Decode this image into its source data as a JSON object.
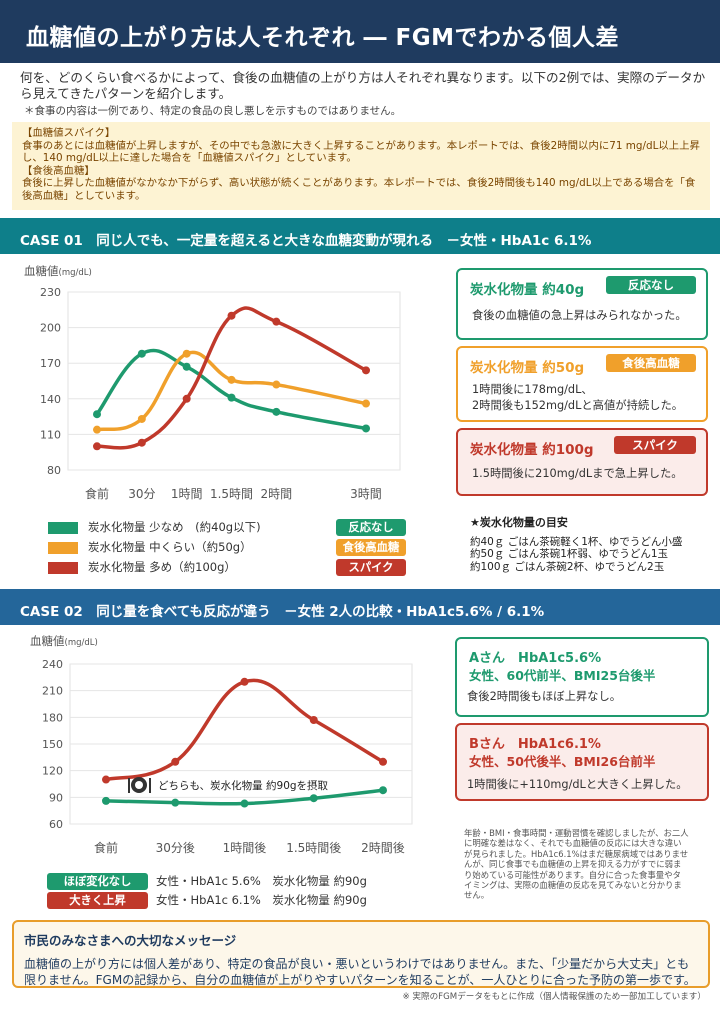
{
  "title": "血糖値の上がり方は人それぞれ ― FGMでわかる個人差",
  "intro": "何を、どのくらい食べるかによって、食後の血糖値の上がり方は人それぞれ異なります。以下の2例では、実際のデータから見えてきたパターンを紹介します。",
  "intro_note": "＊食事の内容は一例であり、特定の食品の良し悪しを示すものではありません。",
  "definitions": {
    "spike_heading": "【血糖値スパイク】",
    "spike_text": "食事のあとには血糖値が上昇しますが、その中でも急激に大きく上昇することがあります。本レポートでは、食後2時間以内に71 mg/dL以上上昇し、140 mg/dL以上に達した場合を「血糖値スパイク」としています。",
    "post_heading": "【食後高血糖】",
    "post_text": "食後に上昇した血糖値がなかなか下がらず、高い状態が続くことがあります。本レポートでは、食後2時間後も140 mg/dL以上である場合を「食後高血糖」としています。"
  },
  "case1": {
    "header": "CASE 01　同じ人でも、一定量を超えると大きな血糖変動が現れる　－女性・HbA1c 6.1%",
    "cards": [
      {
        "title": "炭水化物量 約40g",
        "badge": "反応なし",
        "desc1": "食後の血糖値の急上昇はみられなかった。",
        "desc2": ""
      },
      {
        "title": "炭水化物量 約50g",
        "badge": "食後高血糖",
        "desc1": "1時間後に178mg/dL、",
        "desc2": "2時間後も152mg/dLと高値が持続した。"
      },
      {
        "title": "炭水化物量 約100g",
        "badge": "スパイク",
        "desc1": "1.5時間後に210mg/dLまで急上昇した。",
        "desc2": ""
      }
    ],
    "legend": [
      {
        "label": "炭水化物量 少なめ　(約40g以下)",
        "badge": "反応なし"
      },
      {
        "label": "炭水化物量 中くらい（約50g）",
        "badge": "食後高血糖"
      },
      {
        "label": "炭水化物量 多め（約100g）",
        "badge": "スパイク"
      }
    ],
    "guide_title": "★炭水化物量の目安",
    "guide": [
      "約40ｇ ごはん茶碗軽く1杯、ゆでうどん小盛",
      "約50ｇ ごはん茶碗1杯弱、ゆでうどん1玉",
      "約100ｇ ごはん茶碗2杯、ゆでうどん2玉"
    ]
  },
  "case2": {
    "header": "CASE 02　同じ量を食べても反応が違う　－女性 2人の比較・HbA1c5.6% / 6.1%",
    "annotation": "どちらも、炭水化物量 約90gを摂取",
    "cards": [
      {
        "title": "Aさん　HbA1c5.6%",
        "sub": "女性、60代前半、BMI25台後半",
        "desc": "食後2時間後もほぼ上昇なし。"
      },
      {
        "title": "Bさん　HbA1c6.1%",
        "sub": "女性、50代後半、BMI26台前半",
        "desc": "1時間後に+110mg/dLと大きく上昇した。"
      }
    ],
    "legend": [
      {
        "badge": "ほぼ変化なし",
        "label": "女性・HbA1c 5.6%　炭水化物量 約90g"
      },
      {
        "badge": "大きく上昇",
        "label": "女性・HbA1c 6.1%　炭水化物量 約90g"
      }
    ],
    "note": "年齢・BMI・食事時間・運動習慣を確認しましたが、お二人に明確な差はなく、それでも血糖値の反応には大きな違いが見られました。HbA1c6.1%はまだ糖尿病域ではありませんが、同じ食事でも血糖値の上昇を抑える力がすでに弱まり始めている可能性があります。自分に合った食事量やタイミングは、実際の血糖値の反応を見てみないと分かりません。"
  },
  "message": {
    "title": "市民のみなさまへの大切なメッセージ",
    "body": "血糖値の上がり方には個人差があり、特定の食品が良い・悪いというわけではありません。また、「少量だから大丈夫」とも限りません。FGMの記録から、自分の血糖値が上がりやすいパターンを知ることが、一人ひとりに合った予防の第一歩です。"
  },
  "footer": "※ 実際のFGMデータをもとに作成（個人情報保護のため一部加工しています）",
  "colors": {
    "green": "#1e9a6e",
    "orange": "#f0a02b",
    "red": "#c0392b",
    "navy": "#1f3b5f",
    "teal": "#0e7f8a",
    "blue": "#24669a"
  },
  "chart_data": [
    {
      "type": "line",
      "ylabel": "血糖値",
      "yunit": "(mg/dL)",
      "categories": [
        "食前",
        "30分",
        "1時間",
        "1.5時間",
        "2時間",
        "3時間"
      ],
      "x": [
        0,
        0.5,
        1,
        1.5,
        2,
        3
      ],
      "ylim": [
        80,
        230
      ],
      "yticks": [
        80,
        110,
        140,
        170,
        200,
        230
      ],
      "grid": true,
      "series": [
        {
          "name": "炭水化物量 少なめ　(約40g以下)",
          "color": "#1e9a6e",
          "values": [
            127,
            178,
            167,
            141,
            129,
            115
          ]
        },
        {
          "name": "炭水化物量 中くらい（約50g）",
          "color": "#f0a02b",
          "values": [
            114,
            123,
            178,
            156,
            152,
            136
          ]
        },
        {
          "name": "炭水化物量 多め（約100g）",
          "color": "#c0392b",
          "values": [
            100,
            103,
            140,
            210,
            205,
            164
          ]
        }
      ]
    },
    {
      "type": "line",
      "ylabel": "血糖値",
      "yunit": "(mg/dL)",
      "categories": [
        "食前",
        "30分後",
        "1時間後",
        "1.5時間後",
        "2時間後"
      ],
      "x": [
        0,
        0.5,
        1,
        1.5,
        2
      ],
      "ylim": [
        60,
        240
      ],
      "yticks": [
        60,
        90,
        120,
        150,
        180,
        210,
        240
      ],
      "grid": true,
      "series": [
        {
          "name": "女性・HbA1c 5.6%　炭水化物量 約90g",
          "color": "#1e9a6e",
          "values": [
            86,
            84,
            83,
            89,
            98
          ]
        },
        {
          "name": "女性・HbA1c 6.1%　炭水化物量 約90g",
          "color": "#c0392b",
          "values": [
            110,
            130,
            220,
            177,
            130
          ]
        }
      ]
    }
  ]
}
